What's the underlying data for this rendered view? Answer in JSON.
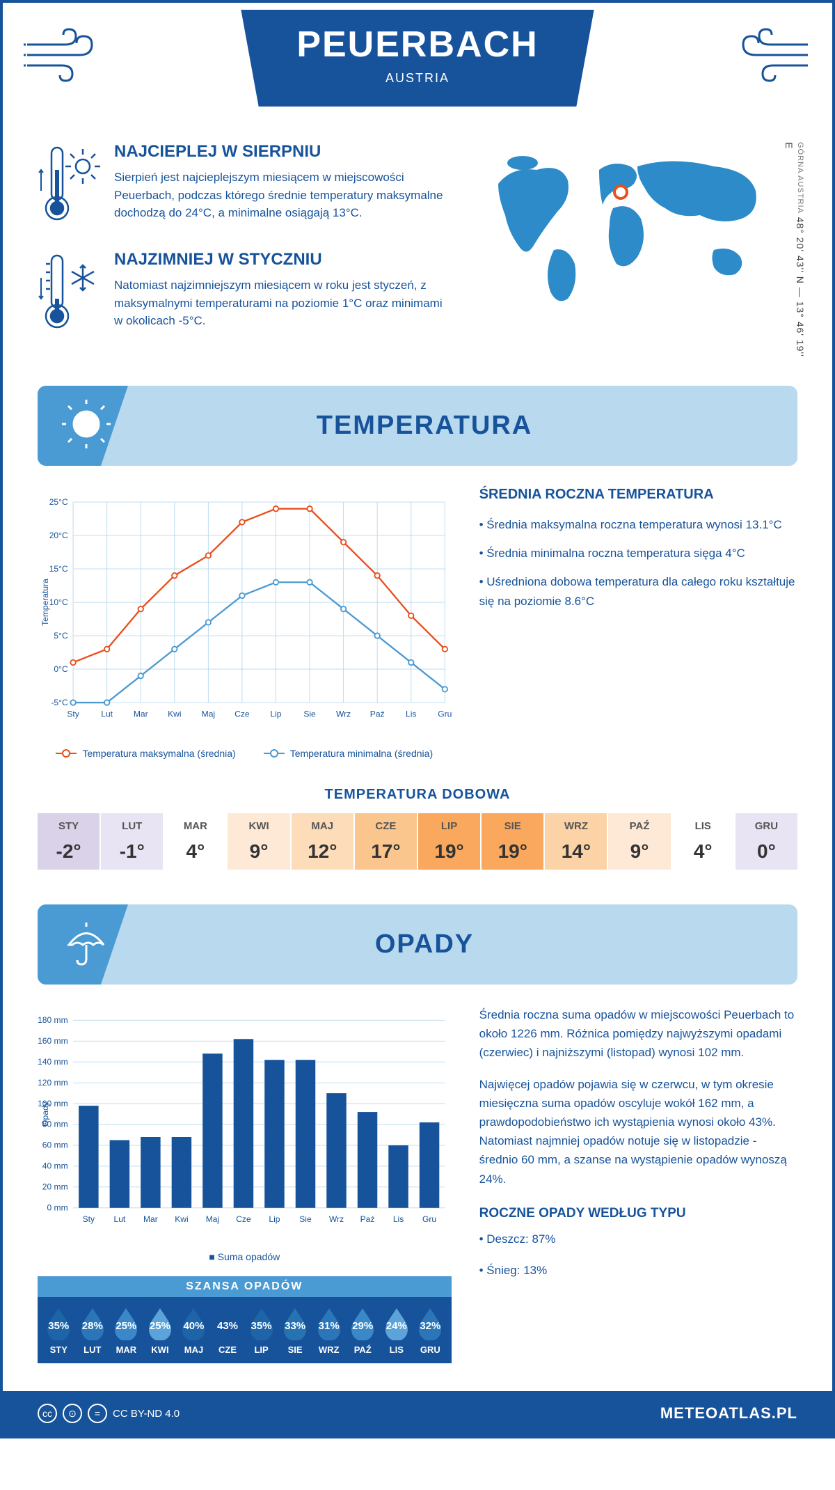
{
  "header": {
    "city": "PEUERBACH",
    "country": "AUSTRIA"
  },
  "coords": {
    "text": "48° 20' 43'' N — 13° 46' 19'' E",
    "region": "GÓRNA AUSTRIA"
  },
  "marker_pos": {
    "left_pct": 49,
    "top_pct": 30
  },
  "colors": {
    "primary": "#17539b",
    "accent": "#b9d9ef",
    "tab": "#4a9ad3",
    "line_max": "#e94e1b",
    "line_min": "#4a9ad3",
    "bar": "#17539b",
    "marker": "#e94e1b"
  },
  "warm": {
    "title": "NAJCIEPLEJ W SIERPNIU",
    "text": "Sierpień jest najcieplejszym miesiącem w miejscowości Peuerbach, podczas którego średnie temperatury maksymalne dochodzą do 24°C, a minimalne osiągają 13°C."
  },
  "cold": {
    "title": "NAJZIMNIEJ W STYCZNIU",
    "text": "Natomiast najzimniejszym miesiącem w roku jest styczeń, z maksymalnymi temperaturami na poziomie 1°C oraz minimami w okolicach -5°C."
  },
  "temp_section_title": "TEMPERATURA",
  "months_short": [
    "Sty",
    "Lut",
    "Mar",
    "Kwi",
    "Maj",
    "Cze",
    "Lip",
    "Sie",
    "Wrz",
    "Paź",
    "Lis",
    "Gru"
  ],
  "months_upper": [
    "STY",
    "LUT",
    "MAR",
    "KWI",
    "MAJ",
    "CZE",
    "LIP",
    "SIE",
    "WRZ",
    "PAŹ",
    "LIS",
    "GRU"
  ],
  "temp_chart": {
    "type": "line",
    "y_label": "Temperatura",
    "y_min": -5,
    "y_max": 25,
    "y_step": 5,
    "y_ticks": [
      "-5°C",
      "0°C",
      "5°C",
      "10°C",
      "15°C",
      "20°C",
      "25°C"
    ],
    "max_series": [
      1,
      3,
      9,
      14,
      17,
      22,
      24,
      24,
      19,
      14,
      8,
      3
    ],
    "min_series": [
      -5,
      -5,
      -1,
      3,
      7,
      11,
      13,
      13,
      9,
      5,
      1,
      -3
    ],
    "legend_max": "Temperatura maksymalna (średnia)",
    "legend_min": "Temperatura minimalna (średnia)"
  },
  "temp_info": {
    "title": "ŚREDNIA ROCZNA TEMPERATURA",
    "b1": "• Średnia maksymalna roczna temperatura wynosi 13.1°C",
    "b2": "• Średnia minimalna roczna temperatura sięga 4°C",
    "b3": "• Uśredniona dobowa temperatura dla całego roku kształtuje się na poziomie 8.6°C"
  },
  "daily_title": "TEMPERATURA DOBOWA",
  "daily_values": [
    "-2°",
    "-1°",
    "4°",
    "9°",
    "12°",
    "17°",
    "19°",
    "19°",
    "14°",
    "9°",
    "4°",
    "0°"
  ],
  "daily_colors": [
    "#d9d2e9",
    "#e8e4f3",
    "#ffffff",
    "#fde9d5",
    "#fddcb9",
    "#fbc58e",
    "#f9a85e",
    "#f9a85e",
    "#fcd3a6",
    "#fde9d5",
    "#ffffff",
    "#e8e4f3"
  ],
  "precip_section_title": "OPADY",
  "precip_chart": {
    "type": "bar",
    "y_label": "Opady",
    "y_min": 0,
    "y_max": 180,
    "y_step": 20,
    "values": [
      98,
      65,
      68,
      68,
      148,
      162,
      142,
      142,
      110,
      92,
      60,
      82
    ],
    "legend": "Suma opadów"
  },
  "precip_info": {
    "p1": "Średnia roczna suma opadów w miejscowości Peuerbach to około 1226 mm. Różnica pomiędzy najwyższymi opadami (czerwiec) i najniższymi (listopad) wynosi 102 mm.",
    "p2": "Najwięcej opadów pojawia się w czerwcu, w tym okresie miesięczna suma opadów oscyluje wokół 162 mm, a prawdopodobieństwo ich wystąpienia wynosi około 43%. Natomiast najmniej opadów notuje się w listopadzie - średnio 60 mm, a szanse na wystąpienie opadów wynoszą 24%.",
    "type_title": "ROCZNE OPADY WEDŁUG TYPU",
    "type_rain": "• Deszcz: 87%",
    "type_snow": "• Śnieg: 13%"
  },
  "chance": {
    "title": "SZANSA OPADÓW",
    "values": [
      "35%",
      "28%",
      "25%",
      "25%",
      "40%",
      "43%",
      "35%",
      "33%",
      "31%",
      "29%",
      "24%",
      "32%"
    ],
    "drop_fills": [
      "#1e64a8",
      "#2b76b8",
      "#3a88c8",
      "#5ba3d8",
      "#1e64a8",
      "#17539b",
      "#1e64a8",
      "#2672b2",
      "#2b76b8",
      "#3a88c8",
      "#5ba3d8",
      "#2b76b8"
    ]
  },
  "footer": {
    "license": "CC BY-ND 4.0",
    "site": "METEOATLAS.PL"
  }
}
